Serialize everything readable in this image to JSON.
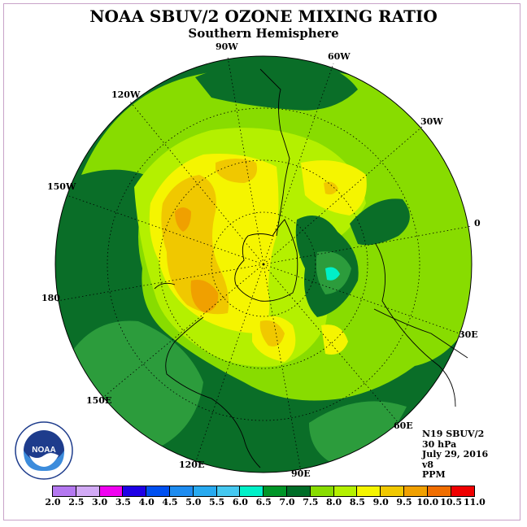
{
  "title": "NOAA SBUV/2 OZONE MIXING RATIO",
  "subtitle": "Southern Hemisphere",
  "longitude_labels": [
    "90W",
    "60W",
    "30W",
    "0",
    "30E",
    "60E",
    "90E",
    "120E",
    "150E",
    "180",
    "150W",
    "120W"
  ],
  "info": {
    "satellite": "N19 SBUV/2",
    "level": "30 hPa",
    "date": "July 29, 2016",
    "version": "v8",
    "units": "PPM"
  },
  "logo_text": "NOAA",
  "colorbar": {
    "ticks": [
      "2.0",
      "2.5",
      "3.0",
      "3.5",
      "4.0",
      "4.5",
      "5.0",
      "5.5",
      "6.0",
      "6.5",
      "7.0",
      "7.5",
      "8.0",
      "8.5",
      "9.0",
      "9.5",
      "10.0",
      "10.5",
      "11.0"
    ],
    "colors": [
      "#b478f0",
      "#d2aaf5",
      "#f000f0",
      "#1e00e6",
      "#0050f0",
      "#1e8cf0",
      "#28aaf0",
      "#46c8f0",
      "#00f0c8",
      "#009628",
      "#006e28",
      "#88dc00",
      "#b4f000",
      "#f5f500",
      "#f0c800",
      "#f0a000",
      "#f06e00",
      "#f00000",
      "#8c5a3c"
    ]
  },
  "colors": {
    "dark_green": "#0a6e28",
    "mid_green": "#2c9c3c",
    "light_green": "#88dc00",
    "yellow_green": "#b4f000",
    "yellow": "#f5f500",
    "gold": "#f0c800",
    "orange": "#f0a000",
    "cyan": "#00f0c8",
    "frame": "#c9a3c9"
  }
}
